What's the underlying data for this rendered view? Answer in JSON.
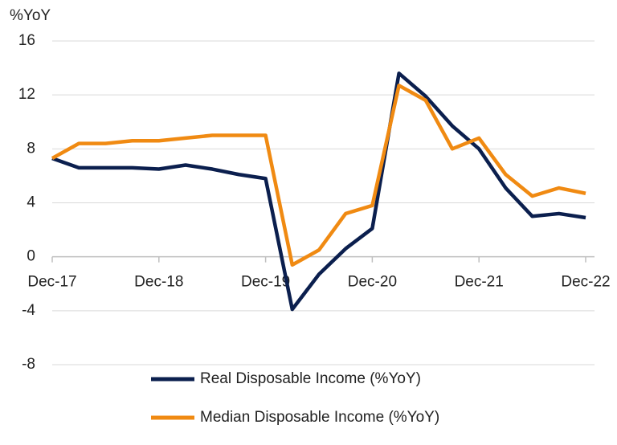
{
  "chart_data": {
    "type": "line",
    "y_axis_label": "%YoY",
    "categories": [
      "Dec-17",
      null,
      null,
      null,
      "Dec-18",
      null,
      null,
      null,
      "Dec-19",
      null,
      null,
      null,
      "Dec-20",
      null,
      null,
      null,
      "Dec-21",
      null,
      null,
      null,
      "Dec-22"
    ],
    "series": [
      {
        "name": "Real Disposable Income (%YoY)",
        "color": "#0b1f4e",
        "values": [
          7.3,
          6.6,
          6.6,
          6.6,
          6.5,
          6.8,
          6.5,
          6.1,
          5.8,
          -3.9,
          -1.3,
          0.6,
          2.1,
          13.6,
          11.9,
          9.7,
          8.0,
          5.1,
          3.0,
          3.2,
          2.9
        ]
      },
      {
        "name": "Median Disposable Income (%YoY)",
        "color": "#f08a12",
        "values": [
          7.3,
          8.4,
          8.4,
          8.6,
          8.6,
          8.8,
          9.0,
          9.0,
          9.0,
          -0.6,
          0.5,
          3.2,
          3.8,
          12.7,
          11.6,
          8.0,
          8.8,
          6.1,
          4.5,
          5.1,
          4.7
        ]
      }
    ],
    "ylim": [
      -8,
      16
    ],
    "yticks": [
      -8,
      -4,
      0,
      4,
      8,
      12,
      16
    ],
    "grid": true,
    "legend": "bottom"
  }
}
